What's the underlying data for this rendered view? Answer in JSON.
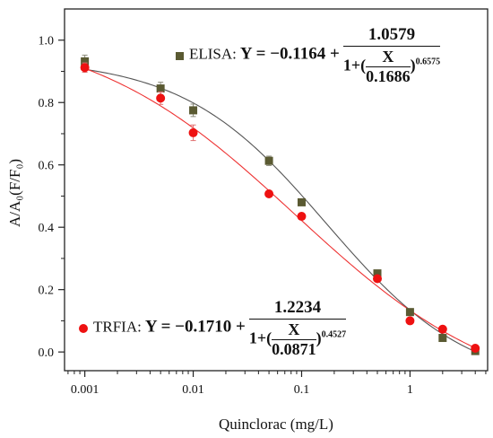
{
  "chart_data": {
    "type": "scatter",
    "xscale": "log",
    "xlabel": "Quinclorac (mg/L)",
    "ylabel": "A/A₀(F/F₀)",
    "xlim": [
      0.00065,
      5.2
    ],
    "ylim": [
      -0.06,
      1.1
    ],
    "xticks": [
      {
        "value": 0.001,
        "label": "0.001"
      },
      {
        "value": 0.01,
        "label": "0.01"
      },
      {
        "value": 0.1,
        "label": "0.1"
      },
      {
        "value": 1,
        "label": "1"
      }
    ],
    "yticks": [
      {
        "value": 0.0,
        "label": "0.0"
      },
      {
        "value": 0.2,
        "label": "0.2"
      },
      {
        "value": 0.4,
        "label": "0.4"
      },
      {
        "value": 0.6,
        "label": "0.6"
      },
      {
        "value": 0.8,
        "label": "0.8"
      },
      {
        "value": 1.0,
        "label": "1.0"
      }
    ],
    "series": [
      {
        "name": "ELISA",
        "marker": "square",
        "color": "#5a5a32",
        "curve_color": "#555555",
        "fit": {
          "a": -0.1164,
          "b": 1.0579,
          "c": 0.1686,
          "n": 0.6575
        },
        "x": [
          0.001,
          0.005,
          0.01,
          0.05,
          0.1,
          0.5,
          1,
          2,
          4
        ],
        "y": [
          0.932,
          0.845,
          0.775,
          0.613,
          0.48,
          0.252,
          0.128,
          0.045,
          0.003
        ],
        "err": [
          0.02,
          0.02,
          0.02,
          0.015,
          0.01,
          0.008,
          0.006,
          0.005,
          0.004
        ]
      },
      {
        "name": "TRFIA",
        "marker": "circle",
        "color": "#ee1111",
        "curve_color": "#ee3333",
        "fit": {
          "a": -0.171,
          "b": 1.2234,
          "c": 0.0871,
          "n": 0.4527
        },
        "x": [
          0.001,
          0.005,
          0.01,
          0.05,
          0.1,
          0.5,
          1,
          2,
          4
        ],
        "y": [
          0.912,
          0.814,
          0.703,
          0.507,
          0.435,
          0.235,
          0.1,
          0.073,
          0.012
        ],
        "err": [
          0.015,
          0.02,
          0.025,
          0.008,
          0.008,
          0.008,
          0.006,
          0.006,
          0.005
        ]
      }
    ]
  },
  "equations": {
    "elisa": {
      "label": "ELISA:",
      "lhs": "Y = −0.1164 +",
      "num": "1.0579",
      "den_pre": "1+(",
      "x": "X",
      "c": "0.1686",
      "den_post": ")",
      "exp": "0.6575"
    },
    "trfia": {
      "label": "TRFIA:",
      "lhs": "Y = −0.1710 +",
      "num": "1.2234",
      "den_pre": "1+(",
      "x": "X",
      "c": "0.0871",
      "den_post": ")",
      "exp": "0.4527"
    }
  }
}
